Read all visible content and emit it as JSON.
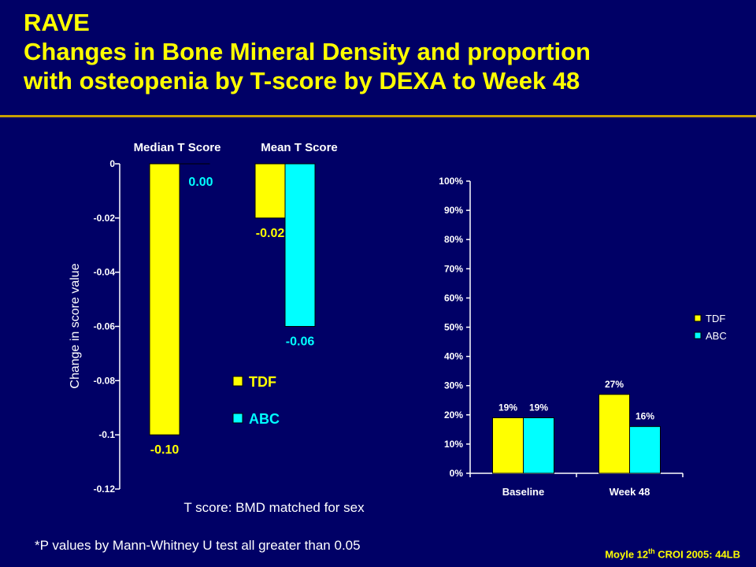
{
  "slide": {
    "title_line1": "RAVE",
    "title_line2": "Changes in Bone Mineral Density and proportion",
    "title_line3": "with osteopenia by T-score by DEXA to Week 48",
    "footnote": "*P values by Mann-Whitney U test all greater than 0.05",
    "citation_pre": "Moyle 12",
    "citation_sup": "th",
    "citation_post": " CROI 2005: 44LB"
  },
  "colors": {
    "background": "#000066",
    "title": "#ffff00",
    "tdf": "#ffff00",
    "abc": "#00ffff",
    "text": "#ffffff"
  },
  "chart_data": [
    {
      "type": "bar",
      "categories": [
        "Median T Score",
        "Mean T Score"
      ],
      "series": [
        {
          "name": "TDF",
          "values": [
            -0.1,
            -0.02
          ],
          "labels": [
            "-0.10",
            "-0.02"
          ],
          "color": "#ffff00"
        },
        {
          "name": "ABC",
          "values": [
            0.0,
            -0.06
          ],
          "labels": [
            "0.00",
            "-0.06"
          ],
          "color": "#00ffff"
        }
      ],
      "ylabel": "Change in score value",
      "xlabel": "T score: BMD matched for sex",
      "ylim": [
        -0.12,
        0
      ],
      "yticks": [
        0,
        -0.02,
        -0.04,
        -0.06,
        -0.08,
        -0.1,
        -0.12
      ],
      "ytick_labels": [
        "0",
        "-0.02",
        "-0.04",
        "-0.06",
        "-0.08",
        "-0.1",
        "-0.12"
      ],
      "category_position": "top",
      "legend": "inside-lower-right",
      "grid": false
    },
    {
      "type": "bar",
      "categories": [
        "Baseline",
        "Week 48"
      ],
      "series": [
        {
          "name": "TDF",
          "values": [
            19,
            27
          ],
          "labels": [
            "19%",
            "27%"
          ],
          "color": "#ffff00"
        },
        {
          "name": "ABC",
          "values": [
            19,
            16
          ],
          "labels": [
            "19%",
            "16%"
          ],
          "color": "#00ffff"
        }
      ],
      "ylim": [
        0,
        100
      ],
      "yticks": [
        0,
        10,
        20,
        30,
        40,
        50,
        60,
        70,
        80,
        90,
        100
      ],
      "ytick_labels": [
        "0%",
        "10%",
        "20%",
        "30%",
        "40%",
        "50%",
        "60%",
        "70%",
        "80%",
        "90%",
        "100%"
      ],
      "legend": "right",
      "grid": false
    }
  ]
}
